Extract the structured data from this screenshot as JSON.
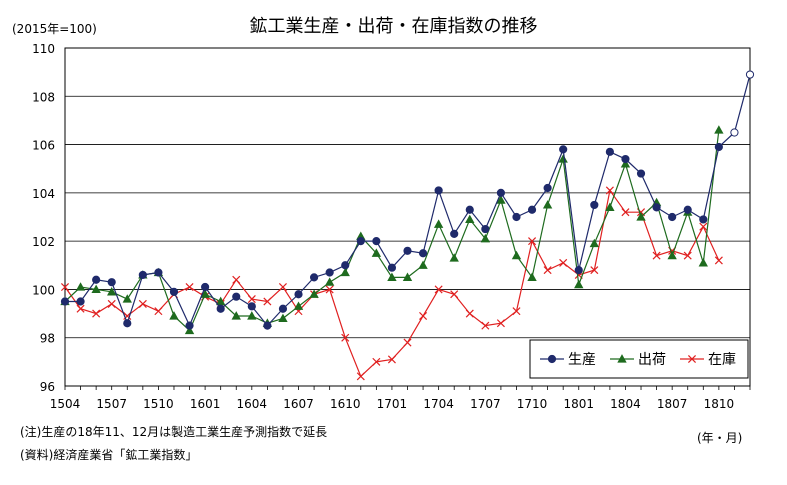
{
  "title": "鉱工業生産・出荷・在庫指数の推移",
  "unit_label": "(2015年=100)",
  "x_unit_label": "(年・月)",
  "notes": [
    "(注)生産の18年11、12月は製造工業生産予測指数で延長",
    "(資料)経済産業省「鉱工業指数」"
  ],
  "chart_data": {
    "type": "line",
    "x": [
      "1504",
      "1505",
      "1506",
      "1507",
      "1508",
      "1509",
      "1510",
      "1511",
      "1512",
      "1601",
      "1602",
      "1603",
      "1604",
      "1605",
      "1606",
      "1607",
      "1608",
      "1609",
      "1610",
      "1611",
      "1612",
      "1701",
      "1702",
      "1703",
      "1704",
      "1705",
      "1706",
      "1707",
      "1708",
      "1709",
      "1710",
      "1711",
      "1712",
      "1801",
      "1802",
      "1803",
      "1804",
      "1805",
      "1806",
      "1807",
      "1808",
      "1809",
      "1810",
      "1811",
      "1812"
    ],
    "x_tick_labels": [
      "1504",
      "1507",
      "1510",
      "1601",
      "1604",
      "1607",
      "1610",
      "1701",
      "1704",
      "1707",
      "1710",
      "1801",
      "1804",
      "1807",
      "1810"
    ],
    "ylim": [
      96,
      110
    ],
    "y_ticks": [
      96,
      98,
      100,
      102,
      104,
      106,
      108,
      110
    ],
    "grid": true,
    "legend_position": "bottom-right",
    "series": [
      {
        "name": "生産",
        "color": "#1f2a6b",
        "marker": "circle",
        "values": [
          99.5,
          99.5,
          100.4,
          100.3,
          98.6,
          100.6,
          100.7,
          99.9,
          98.5,
          100.1,
          99.2,
          99.7,
          99.3,
          98.5,
          99.2,
          99.8,
          100.5,
          100.7,
          101.0,
          102.0,
          102.0,
          100.9,
          101.6,
          101.5,
          104.1,
          102.3,
          103.3,
          102.5,
          104.0,
          103.0,
          103.3,
          104.2,
          105.8,
          100.8,
          103.5,
          105.7,
          105.4,
          104.8,
          103.4,
          103.0,
          103.3,
          102.9,
          105.9,
          106.5,
          108.9
        ],
        "forecast_from_index": 43
      },
      {
        "name": "出荷",
        "color": "#1e6b1e",
        "marker": "triangle",
        "values": [
          99.5,
          100.1,
          100.0,
          99.9,
          99.6,
          100.6,
          100.7,
          98.9,
          98.3,
          99.8,
          99.5,
          98.9,
          98.9,
          98.6,
          98.8,
          99.3,
          99.8,
          100.3,
          100.7,
          102.2,
          101.5,
          100.5,
          100.5,
          101.0,
          102.7,
          101.3,
          102.9,
          102.1,
          103.7,
          101.4,
          100.5,
          103.5,
          105.4,
          100.2,
          101.9,
          103.4,
          105.2,
          103.0,
          103.6,
          101.4,
          103.2,
          101.1,
          106.6,
          null,
          null
        ]
      },
      {
        "name": "在庫",
        "color": "#e02020",
        "marker": "x",
        "values": [
          100.1,
          99.2,
          99.0,
          99.4,
          98.9,
          99.4,
          99.1,
          99.8,
          100.1,
          99.7,
          99.4,
          100.4,
          99.6,
          99.5,
          100.1,
          99.1,
          99.8,
          100.0,
          98.0,
          96.4,
          97.0,
          97.1,
          97.8,
          98.9,
          100.0,
          99.8,
          99.0,
          98.5,
          98.6,
          99.1,
          102.0,
          100.8,
          101.1,
          100.6,
          100.8,
          104.1,
          103.2,
          103.2,
          101.4,
          101.6,
          101.4,
          102.6,
          101.2,
          null,
          null
        ]
      }
    ]
  }
}
